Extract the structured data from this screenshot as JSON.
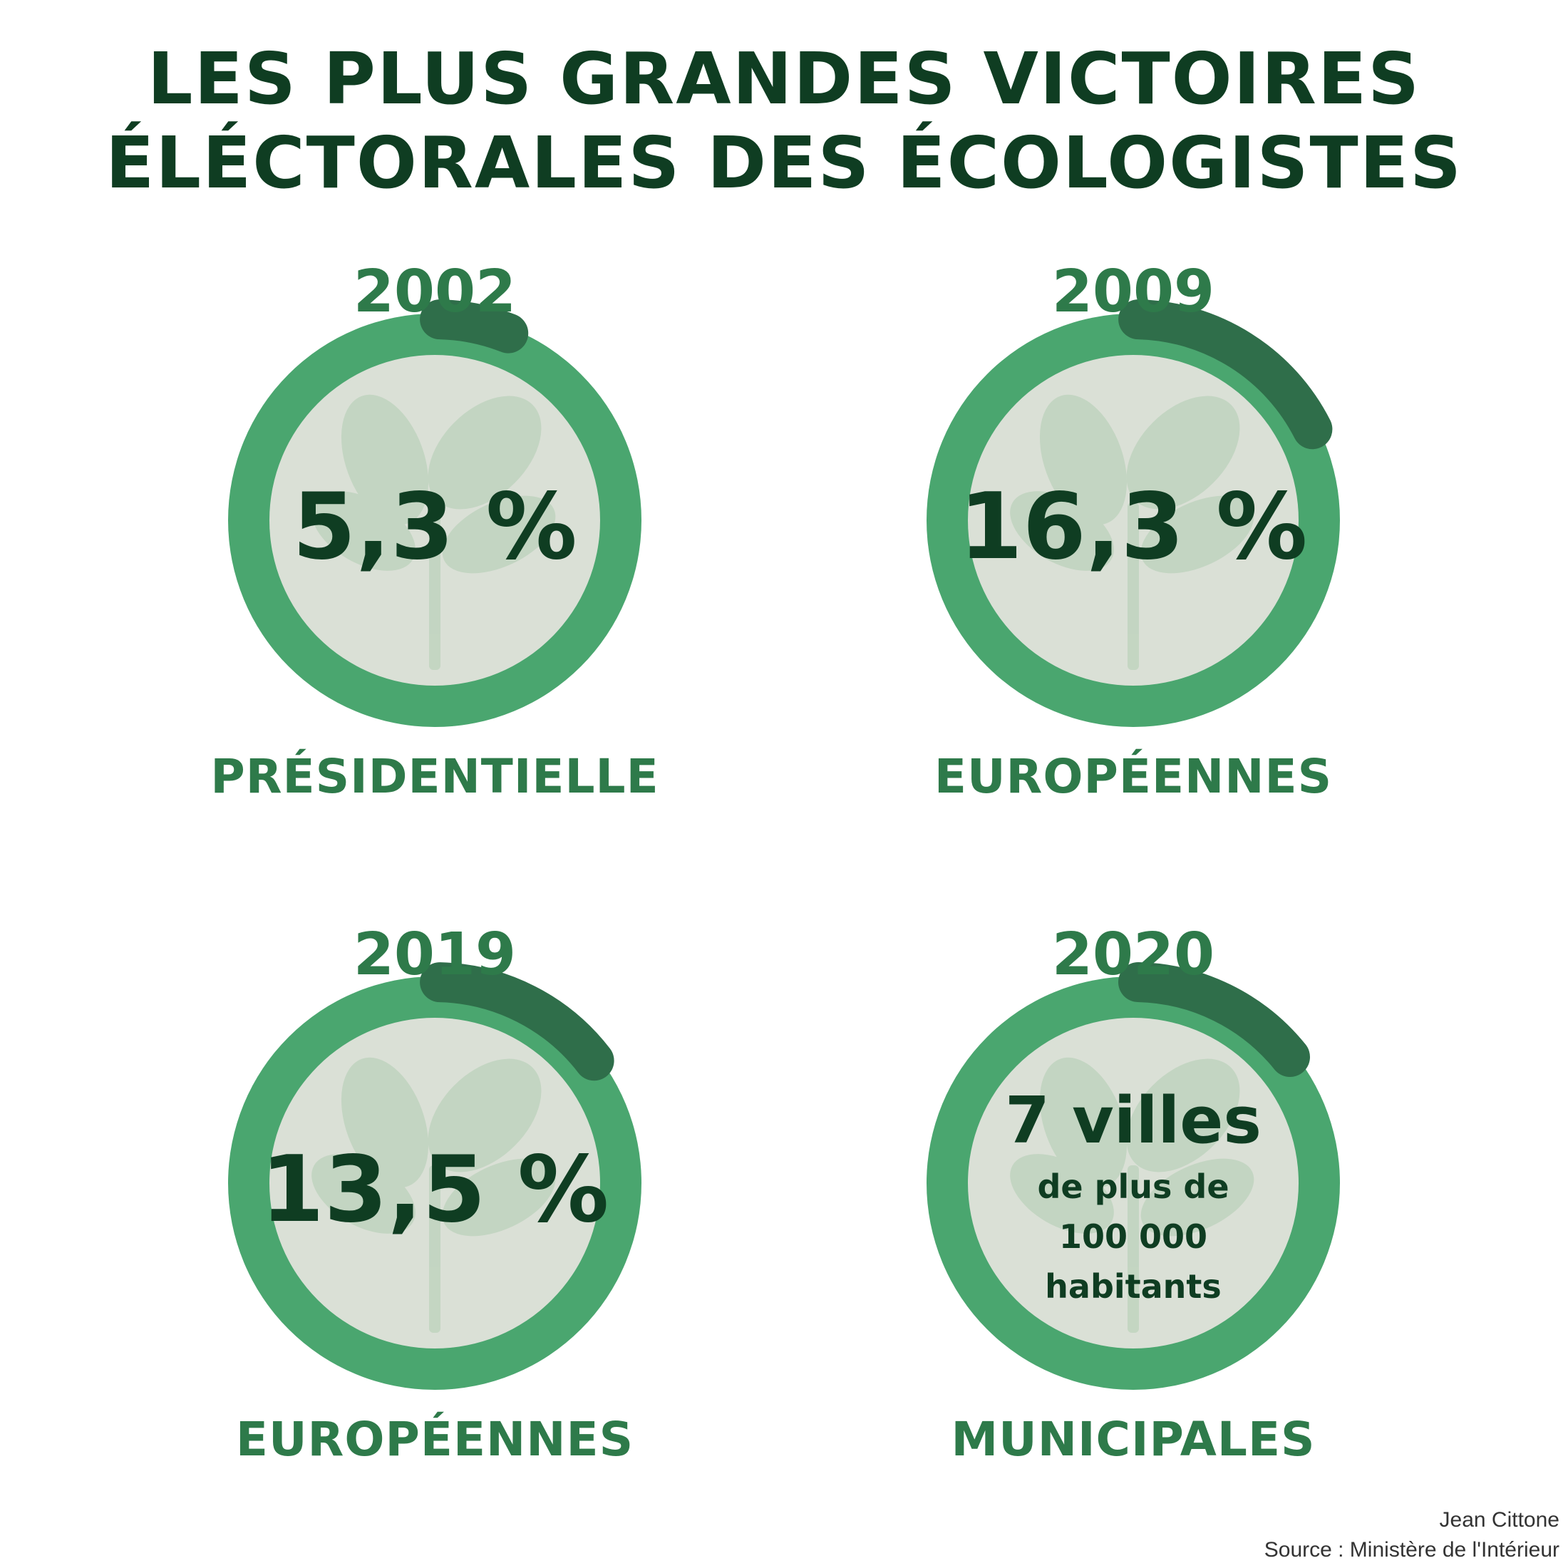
{
  "title": {
    "line1": "LES PLUS GRANDES VICTOIRES",
    "line2": "ÉLÉCTORALES DES ÉCOLOGISTES"
  },
  "colors": {
    "ring": "#4aa66f",
    "ring_highlight": "#2f6e4a",
    "inner": "#dae0d6",
    "dark_text": "#0f3d22",
    "accent_text": "#2e7a4a"
  },
  "cards": [
    {
      "year": "2002",
      "value": "5,3 %",
      "label": "PRÉSIDENTIELLE",
      "progress": 0.053
    },
    {
      "year": "2009",
      "value": "16,3 %",
      "label": "EUROPÉENNES",
      "progress": 0.163
    },
    {
      "year": "2019",
      "value": "13,5 %",
      "label": "EUROPÉENNES",
      "progress": 0.135
    },
    {
      "year": "2020",
      "value": "7 villes",
      "sub1": "de plus de",
      "sub2": "100 000",
      "sub3": "habitants",
      "label": "MUNICIPALES"
    }
  ],
  "credits": {
    "author": "Jean Cittone",
    "source": "Source : Ministère de l'Intérieur"
  }
}
